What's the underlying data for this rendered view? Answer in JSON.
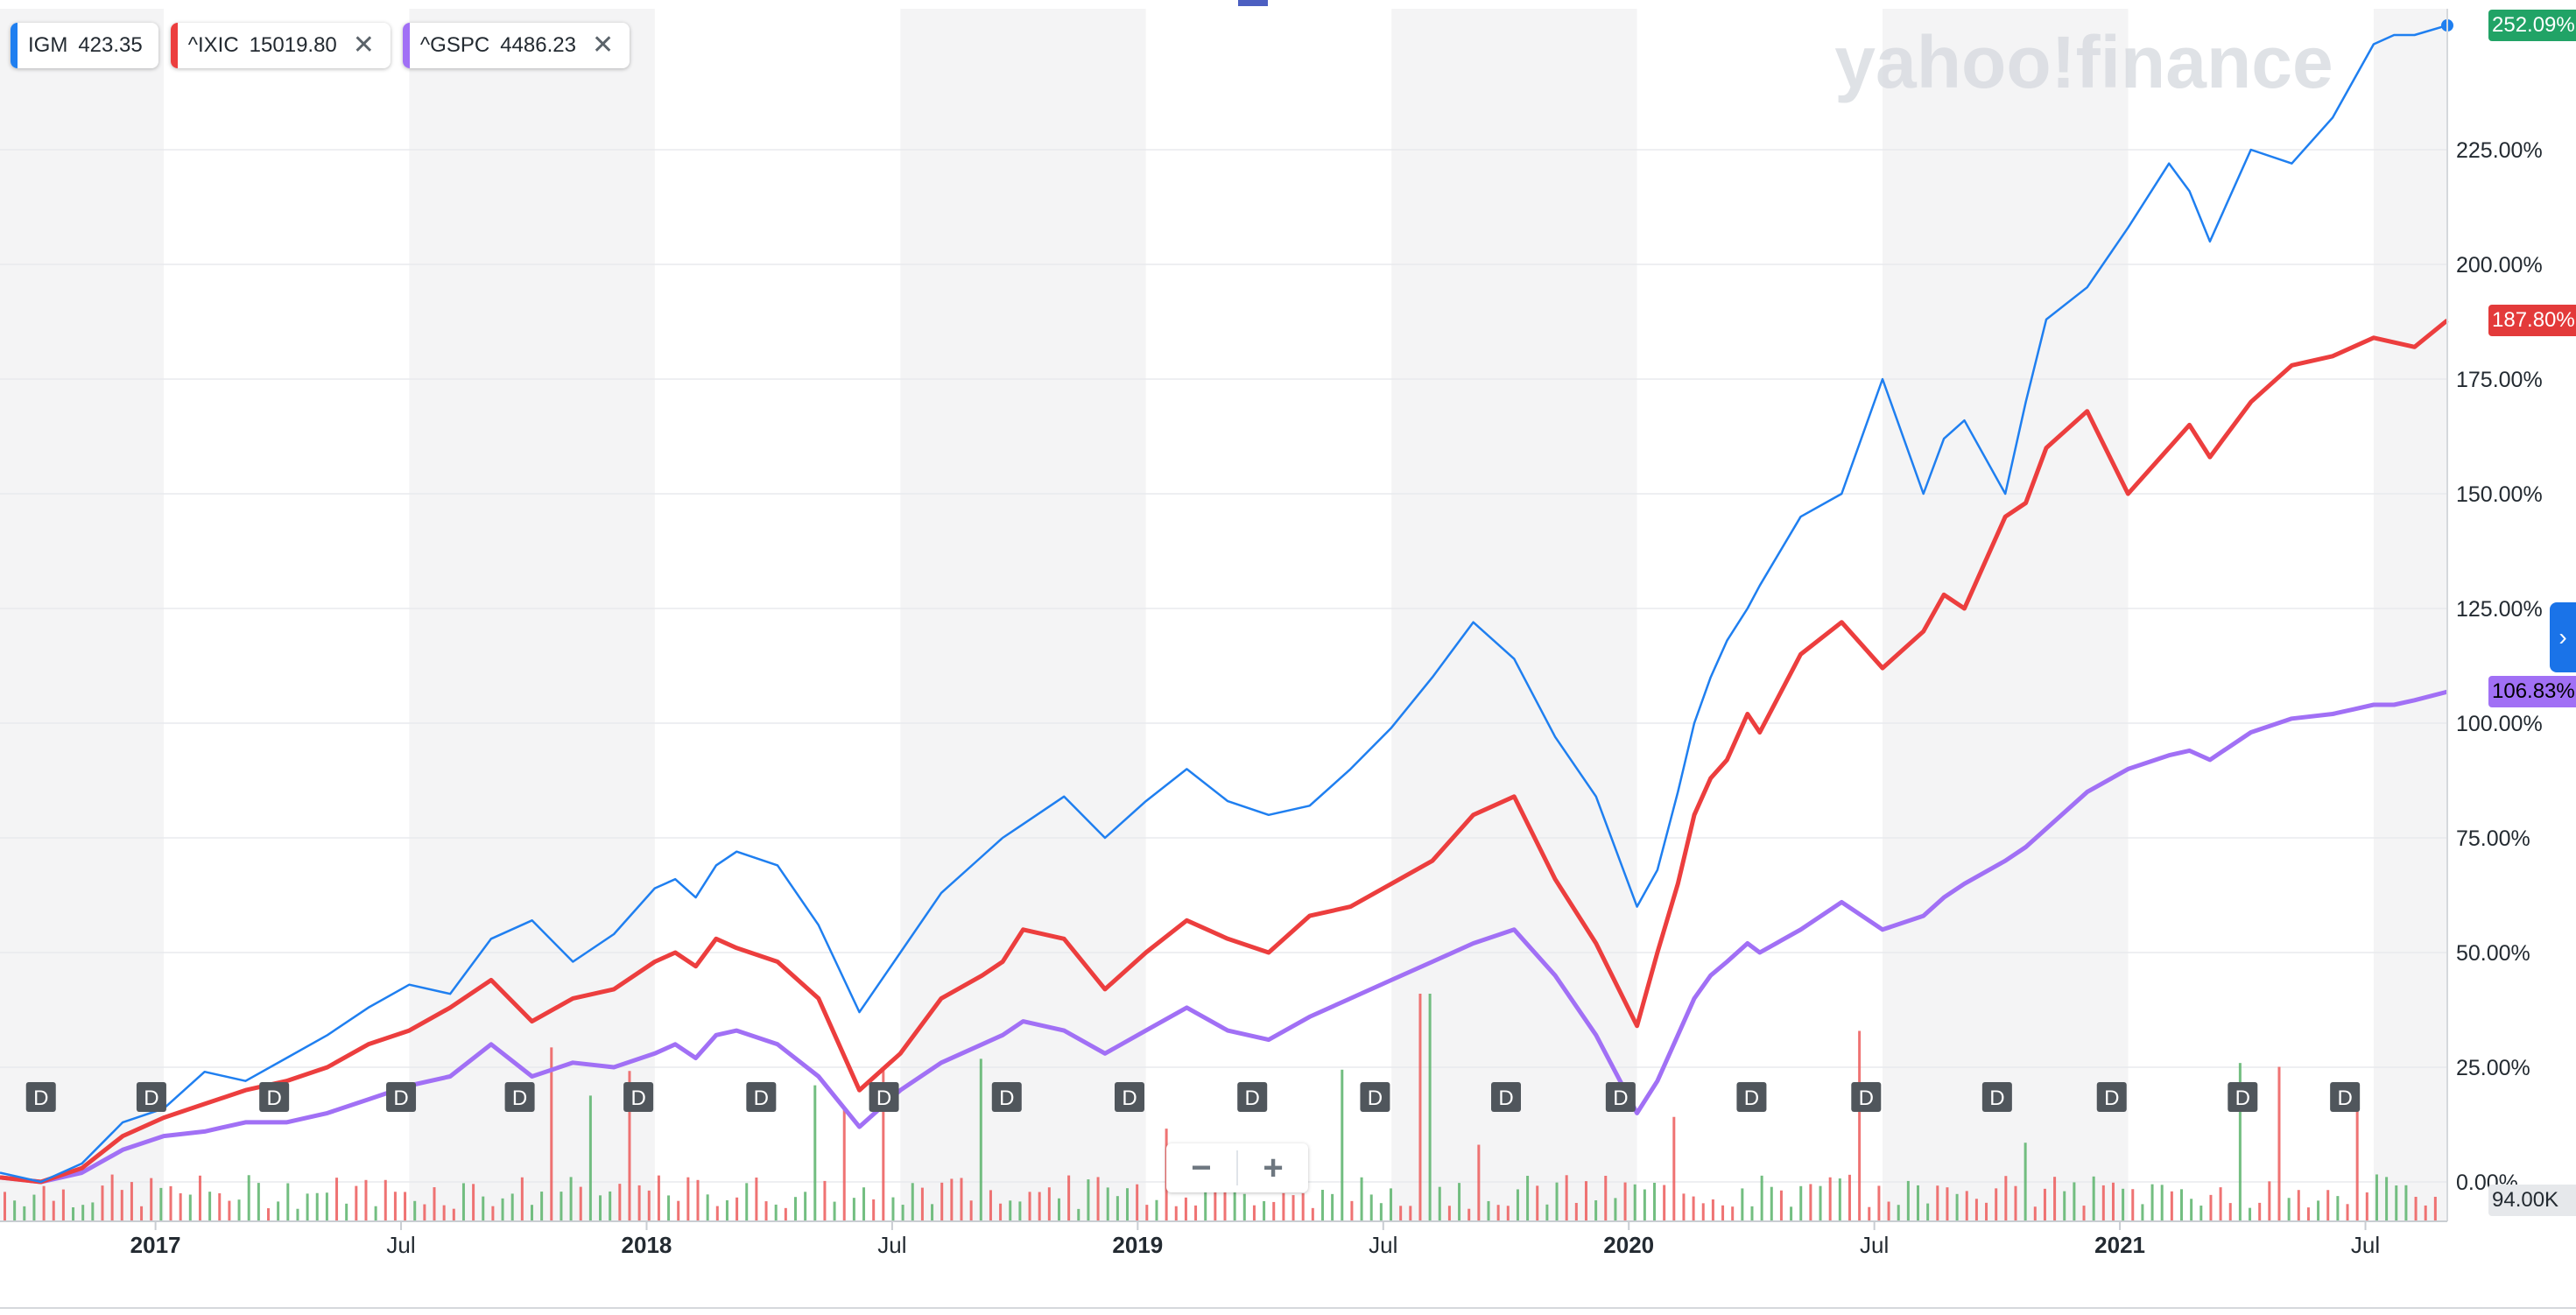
{
  "watermark": "yahoo!finance",
  "legend": [
    {
      "symbol": "IGM",
      "value": "423.35",
      "color": "#1f7ff0",
      "removable": false
    },
    {
      "symbol": "^IXIC",
      "value": "15019.80",
      "color": "#ec3e3e",
      "removable": true,
      "close_icon": "✕"
    },
    {
      "symbol": "^GSPC",
      "value": "4486.23",
      "color": "#a170f5",
      "removable": true,
      "close_icon": "✕"
    }
  ],
  "end_labels": {
    "igm": {
      "text": "252.09%",
      "bg": "#21a366",
      "fg": "#ffffff"
    },
    "ixic": {
      "text": "187.80%",
      "bg": "#e33a3a",
      "fg": "#ffffff"
    },
    "gspc": {
      "text": "106.83%",
      "bg": "#a170f5",
      "fg": "#000000"
    }
  },
  "volume_label": "94.00K",
  "zoom": {
    "minus": "−",
    "plus": "+"
  },
  "expander_icon": "›",
  "chart_data": {
    "type": "line",
    "title": "",
    "xlabel": "",
    "ylabel": "",
    "y_unit": "%",
    "ylim": [
      -5,
      260
    ],
    "y_ticks": [
      "0.00%",
      "25.00%",
      "50.00%",
      "75.00%",
      "100.00%",
      "125.00%",
      "150.00%",
      "175.00%",
      "200.00%",
      "225.00%"
    ],
    "x_ticks": [
      "2017",
      "Jul",
      "2018",
      "Jul",
      "2019",
      "Jul",
      "2020",
      "Jul",
      "2021",
      "Jul"
    ],
    "x_range": [
      "2016-09",
      "2021-08"
    ],
    "x_tick_months": [
      3.8,
      9.8,
      15.8,
      21.8,
      27.8,
      33.8,
      39.8,
      45.8,
      51.8,
      57.8
    ],
    "shaded_bands_months": [
      [
        0,
        4
      ],
      [
        10,
        16
      ],
      [
        22,
        28
      ],
      [
        34,
        40
      ],
      [
        46,
        52
      ],
      [
        58,
        59.8
      ]
    ],
    "dividend_markers": "D",
    "dividend_months": [
      1,
      3.7,
      6.7,
      9.8,
      12.7,
      15.6,
      18.6,
      21.6,
      24.6,
      27.6,
      30.6,
      33.6,
      36.8,
      39.6,
      42.8,
      45.6,
      48.8,
      51.6,
      54.8,
      57.3
    ],
    "series": [
      {
        "name": "IGM",
        "color": "#1f7ff0",
        "x": [
          0,
          1,
          2,
          3,
          4,
          5,
          6,
          7,
          8,
          9,
          10,
          11,
          12,
          13,
          14,
          15,
          16,
          16.5,
          17,
          17.5,
          18,
          19,
          20,
          21,
          22,
          23,
          24,
          24.5,
          25,
          26,
          27,
          28,
          29,
          30,
          31,
          32,
          33,
          34,
          35,
          36,
          37,
          38,
          39,
          40,
          40.5,
          41,
          41.4,
          41.8,
          42.2,
          42.7,
          43,
          44,
          45,
          46,
          47,
          47.5,
          48,
          49,
          49.5,
          50,
          51,
          52,
          53,
          53.5,
          54,
          55,
          56,
          57,
          57.5,
          58,
          58.5,
          59,
          59.8
        ],
        "y": [
          2,
          0,
          4,
          13,
          16,
          24,
          22,
          27,
          32,
          38,
          43,
          41,
          53,
          57,
          48,
          54,
          64,
          66,
          62,
          69,
          72,
          69,
          56,
          37,
          50,
          63,
          71,
          75,
          78,
          84,
          75,
          83,
          90,
          83,
          80,
          82,
          90,
          99,
          110,
          122,
          114,
          97,
          84,
          60,
          68,
          85,
          100,
          110,
          118,
          125,
          130,
          145,
          150,
          175,
          150,
          162,
          166,
          150,
          170,
          188,
          195,
          208,
          222,
          216,
          205,
          225,
          222,
          232,
          240,
          248,
          250,
          250,
          252.09
        ]
      },
      {
        "name": "^IXIC",
        "color": "#ec3e3e",
        "x": [
          0,
          1,
          2,
          3,
          4,
          5,
          6,
          7,
          8,
          9,
          10,
          11,
          12,
          13,
          14,
          15,
          16,
          16.5,
          17,
          17.5,
          18,
          19,
          20,
          21,
          22,
          23,
          24,
          24.5,
          25,
          26,
          27,
          28,
          29,
          30,
          31,
          32,
          33,
          34,
          35,
          36,
          37,
          38,
          39,
          40,
          40.5,
          41,
          41.4,
          41.8,
          42.2,
          42.7,
          43,
          44,
          45,
          46,
          47,
          47.5,
          48,
          49,
          49.5,
          50,
          51,
          52,
          53,
          53.5,
          54,
          55,
          56,
          57,
          57.5,
          58,
          58.5,
          59,
          59.8
        ],
        "y": [
          1,
          0,
          3,
          10,
          14,
          17,
          20,
          22,
          25,
          30,
          33,
          38,
          44,
          35,
          40,
          42,
          48,
          50,
          47,
          53,
          51,
          48,
          40,
          20,
          28,
          40,
          45,
          48,
          55,
          53,
          42,
          50,
          57,
          53,
          50,
          58,
          60,
          65,
          70,
          80,
          84,
          66,
          52,
          34,
          50,
          65,
          80,
          88,
          92,
          102,
          98,
          115,
          122,
          112,
          120,
          128,
          125,
          145,
          148,
          160,
          168,
          150,
          160,
          165,
          158,
          170,
          178,
          180,
          182,
          184,
          183,
          182,
          187.8
        ]
      },
      {
        "name": "^GSPC",
        "color": "#a170f5",
        "x": [
          0,
          1,
          2,
          3,
          4,
          5,
          6,
          7,
          8,
          9,
          10,
          11,
          12,
          13,
          14,
          15,
          16,
          16.5,
          17,
          17.5,
          18,
          19,
          20,
          21,
          22,
          23,
          24,
          24.5,
          25,
          26,
          27,
          28,
          29,
          30,
          31,
          32,
          33,
          34,
          35,
          36,
          37,
          38,
          39,
          40,
          40.5,
          41,
          41.4,
          41.8,
          42.2,
          42.7,
          43,
          44,
          45,
          46,
          47,
          47.5,
          48,
          49,
          49.5,
          50,
          51,
          52,
          53,
          53.5,
          54,
          55,
          56,
          57,
          57.5,
          58,
          58.5,
          59,
          59.8
        ],
        "y": [
          1,
          0,
          2,
          7,
          10,
          11,
          13,
          13,
          15,
          18,
          21,
          23,
          30,
          23,
          26,
          25,
          28,
          30,
          27,
          32,
          33,
          30,
          23,
          12,
          20,
          26,
          30,
          32,
          35,
          33,
          28,
          33,
          38,
          33,
          31,
          36,
          40,
          44,
          48,
          52,
          55,
          45,
          32,
          15,
          22,
          32,
          40,
          45,
          48,
          52,
          50,
          55,
          61,
          55,
          58,
          62,
          65,
          70,
          73,
          77,
          85,
          90,
          93,
          94,
          92,
          98,
          101,
          102,
          103,
          104,
          104,
          105,
          106.83
        ]
      }
    ],
    "volume": {
      "name": "IGM volume",
      "unit": "K",
      "max_label": "94.00K"
    }
  }
}
